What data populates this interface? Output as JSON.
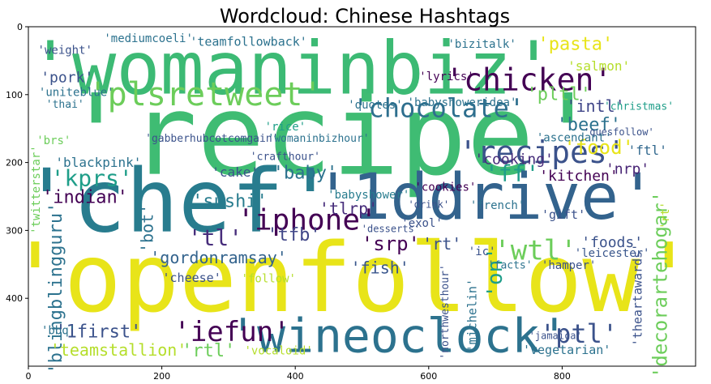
{
  "chart_data": {
    "type": "wordcloud",
    "title": "Wordcloud: Chinese Hashtags",
    "xlim": [
      0,
      1000
    ],
    "ylim": [
      500,
      0
    ],
    "x_ticks": [
      0,
      200,
      400,
      600,
      800
    ],
    "y_ticks": [
      0,
      100,
      200,
      300,
      400
    ],
    "grid": false,
    "words": [
      {
        "text": "'recipe'",
        "x": 455,
        "y": 160,
        "size": 138,
        "color": "#3fbc73",
        "rotate": 0
      },
      {
        "text": "'openfollow'",
        "x": 485,
        "y": 370,
        "size": 118,
        "color": "#e8e419",
        "rotate": 0
      },
      {
        "text": "'womaninbiz'",
        "x": 395,
        "y": 62,
        "size": 90,
        "color": "#3cba74",
        "rotate": 0
      },
      {
        "text": "'chef'",
        "x": 225,
        "y": 258,
        "size": 108,
        "color": "#287c8e",
        "rotate": 0
      },
      {
        "text": "'1ddrive'",
        "x": 685,
        "y": 252,
        "size": 78,
        "color": "#33638d",
        "rotate": 0
      },
      {
        "text": "'wineoclock'",
        "x": 555,
        "y": 455,
        "size": 58,
        "color": "#2c728e",
        "rotate": 0
      },
      {
        "text": "'chicken'",
        "x": 750,
        "y": 78,
        "size": 38,
        "color": "#440154",
        "rotate": 0
      },
      {
        "text": "'plsretweet'",
        "x": 265,
        "y": 100,
        "size": 40,
        "color": "#6ccd5a",
        "rotate": 0
      },
      {
        "text": "'chocolate'",
        "x": 615,
        "y": 120,
        "size": 32,
        "color": "#2e6f8e",
        "rotate": 0
      },
      {
        "text": "'recipes'",
        "x": 770,
        "y": 185,
        "size": 38,
        "color": "#3b528b",
        "rotate": 0
      },
      {
        "text": "'iphone'",
        "x": 418,
        "y": 285,
        "size": 36,
        "color": "#440154",
        "rotate": 0
      },
      {
        "text": "'iefun'",
        "x": 305,
        "y": 450,
        "size": 34,
        "color": "#440154",
        "rotate": 0
      },
      {
        "text": "'wtl'",
        "x": 760,
        "y": 330,
        "size": 34,
        "color": "#6ccd5a",
        "rotate": 0
      },
      {
        "text": "'ptl'",
        "x": 825,
        "y": 452,
        "size": 32,
        "color": "#3b528b",
        "rotate": 0
      },
      {
        "text": "'pltl'",
        "x": 795,
        "y": 100,
        "size": 22,
        "color": "#6ccd5a",
        "rotate": 0
      },
      {
        "text": "'intl'",
        "x": 850,
        "y": 117,
        "size": 20,
        "color": "#404688",
        "rotate": 0
      },
      {
        "text": "'pasta'",
        "x": 820,
        "y": 26,
        "size": 22,
        "color": "#e8e419",
        "rotate": 0
      },
      {
        "text": "'salmon'",
        "x": 855,
        "y": 58,
        "size": 16,
        "color": "#b5de2b",
        "rotate": 0
      },
      {
        "text": "'beef'",
        "x": 840,
        "y": 145,
        "size": 22,
        "color": "#2c728e",
        "rotate": 0
      },
      {
        "text": "'food'",
        "x": 855,
        "y": 178,
        "size": 24,
        "color": "#e8e419",
        "rotate": 0
      },
      {
        "text": "'ftl'",
        "x": 928,
        "y": 182,
        "size": 16,
        "color": "#31688e",
        "rotate": 0
      },
      {
        "text": "'ff'",
        "x": 725,
        "y": 216,
        "size": 28,
        "color": "#1f9e89",
        "rotate": 0
      },
      {
        "text": "'cooking'",
        "x": 728,
        "y": 196,
        "size": 18,
        "color": "#472d7b",
        "rotate": 0
      },
      {
        "text": "'kitchen'",
        "x": 825,
        "y": 220,
        "size": 18,
        "color": "#440154",
        "rotate": 0
      },
      {
        "text": "'nrp'",
        "x": 898,
        "y": 210,
        "size": 18,
        "color": "#482475",
        "rotate": 0
      },
      {
        "text": "'christmas'",
        "x": 915,
        "y": 118,
        "size": 13,
        "color": "#1f9e89",
        "rotate": 0
      },
      {
        "text": "'kprs'",
        "x": 95,
        "y": 223,
        "size": 28,
        "color": "#1f9e89",
        "rotate": 0
      },
      {
        "text": "'indian'",
        "x": 85,
        "y": 252,
        "size": 22,
        "color": "#440154",
        "rotate": 0
      },
      {
        "text": "'blackpink'",
        "x": 105,
        "y": 200,
        "size": 16,
        "color": "#2c728e",
        "rotate": 0
      },
      {
        "text": "'cake'",
        "x": 310,
        "y": 214,
        "size": 16,
        "color": "#3b528b",
        "rotate": 0
      },
      {
        "text": "'baby'",
        "x": 415,
        "y": 216,
        "size": 22,
        "color": "#2c728e",
        "rotate": 0
      },
      {
        "text": "'sushi'",
        "x": 302,
        "y": 258,
        "size": 22,
        "color": "#287c8e",
        "rotate": 0
      },
      {
        "text": "'bot'",
        "x": 178,
        "y": 297,
        "size": 20,
        "color": "#2c728e",
        "rotate": -90
      },
      {
        "text": "'tlrp'",
        "x": 480,
        "y": 268,
        "size": 20,
        "color": "#472d7b",
        "rotate": 0
      },
      {
        "text": "'babyshower'",
        "x": 510,
        "y": 248,
        "size": 14,
        "color": "#287c8e",
        "rotate": 0
      },
      {
        "text": "'gordonramsay'",
        "x": 285,
        "y": 340,
        "size": 20,
        "color": "#33638d",
        "rotate": 0
      },
      {
        "text": "'tl'",
        "x": 280,
        "y": 311,
        "size": 28,
        "color": "#472d7b",
        "rotate": 0
      },
      {
        "text": "'tfb'",
        "x": 398,
        "y": 307,
        "size": 22,
        "color": "#404688",
        "rotate": 0
      },
      {
        "text": "'srp'",
        "x": 543,
        "y": 320,
        "size": 24,
        "color": "#440154",
        "rotate": 0
      },
      {
        "text": "'rt'",
        "x": 620,
        "y": 320,
        "size": 20,
        "color": "#3b528b",
        "rotate": 0
      },
      {
        "text": "'fish'",
        "x": 527,
        "y": 355,
        "size": 20,
        "color": "#39568c",
        "rotate": 0
      },
      {
        "text": "'on'",
        "x": 700,
        "y": 362,
        "size": 26,
        "color": "#1f9e89",
        "rotate": -90
      },
      {
        "text": "'foods'",
        "x": 875,
        "y": 318,
        "size": 18,
        "color": "#3b528b",
        "rotate": 0
      },
      {
        "text": "'leicester'",
        "x": 875,
        "y": 334,
        "size": 14,
        "color": "#39568c",
        "rotate": 0
      },
      {
        "text": "'hamper'",
        "x": 810,
        "y": 352,
        "size": 14,
        "color": "#3b528b",
        "rotate": 0
      },
      {
        "text": "'facts'",
        "x": 722,
        "y": 352,
        "size": 13,
        "color": "#2c728e",
        "rotate": 0
      },
      {
        "text": "'decorartehogar'",
        "x": 947,
        "y": 380,
        "size": 24,
        "color": "#6ccd5a",
        "rotate": -90
      },
      {
        "text": "'theartawards'",
        "x": 913,
        "y": 395,
        "size": 15,
        "color": "#3b528b",
        "rotate": -90
      },
      {
        "text": "'rt'",
        "x": 955,
        "y": 278,
        "size": 14,
        "color": "#b5de2b",
        "rotate": -90
      },
      {
        "text": "'cheese'",
        "x": 245,
        "y": 370,
        "size": 15,
        "color": "#3b528b",
        "rotate": 0
      },
      {
        "text": "'follow'",
        "x": 360,
        "y": 372,
        "size": 14,
        "color": "#b5de2b",
        "rotate": 0
      },
      {
        "text": "'northwesthour'",
        "x": 625,
        "y": 420,
        "size": 13,
        "color": "#3b528b",
        "rotate": -90
      },
      {
        "text": "'michelin'",
        "x": 665,
        "y": 425,
        "size": 15,
        "color": "#2c728e",
        "rotate": -90
      },
      {
        "text": "'blingblingguru'",
        "x": 42,
        "y": 385,
        "size": 22,
        "color": "#2c728e",
        "rotate": -90
      },
      {
        "text": "'1first'",
        "x": 105,
        "y": 450,
        "size": 22,
        "color": "#3b528b",
        "rotate": 0
      },
      {
        "text": "'teamstallion'",
        "x": 135,
        "y": 476,
        "size": 20,
        "color": "#b5de2b",
        "rotate": 0
      },
      {
        "text": "'rtl'",
        "x": 270,
        "y": 478,
        "size": 22,
        "color": "#6ccd5a",
        "rotate": 0
      },
      {
        "text": "'vocaloid'",
        "x": 375,
        "y": 478,
        "size": 14,
        "color": "#b5de2b",
        "rotate": 0
      },
      {
        "text": "'vegetarian'",
        "x": 807,
        "y": 476,
        "size": 15,
        "color": "#2c728e",
        "rotate": 0
      },
      {
        "text": "'bizitalk'",
        "x": 680,
        "y": 26,
        "size": 14,
        "color": "#2c728e",
        "rotate": 0
      },
      {
        "text": "'teamfollowback'",
        "x": 330,
        "y": 22,
        "size": 15,
        "color": "#2c728e",
        "rotate": 0
      },
      {
        "text": "'mediumcoeli'",
        "x": 180,
        "y": 18,
        "size": 14,
        "color": "#2c728e",
        "rotate": 0
      },
      {
        "text": "'weight'",
        "x": 55,
        "y": 35,
        "size": 14,
        "color": "#3b528b",
        "rotate": 0
      },
      {
        "text": "'pork'",
        "x": 58,
        "y": 75,
        "size": 18,
        "color": "#3b528b",
        "rotate": 0
      },
      {
        "text": "'uniteblue'",
        "x": 72,
        "y": 97,
        "size": 14,
        "color": "#2c728e",
        "rotate": 0
      },
      {
        "text": "'thai'",
        "x": 55,
        "y": 115,
        "size": 13,
        "color": "#2c728e",
        "rotate": 0
      },
      {
        "text": "'brs'",
        "x": 38,
        "y": 168,
        "size": 14,
        "color": "#6ccd5a",
        "rotate": 0
      },
      {
        "text": "'quotes'",
        "x": 520,
        "y": 116,
        "size": 14,
        "color": "#2c728e",
        "rotate": 0
      },
      {
        "text": "'babyshoweridea'",
        "x": 650,
        "y": 112,
        "size": 14,
        "color": "#2c728e",
        "rotate": 0
      },
      {
        "text": "'lyrics'",
        "x": 627,
        "y": 74,
        "size": 14,
        "color": "#440154",
        "rotate": 0
      },
      {
        "text": "'ascendant'",
        "x": 818,
        "y": 164,
        "size": 14,
        "color": "#2c728e",
        "rotate": 0
      },
      {
        "text": "'gabberhubcotcomgain'",
        "x": 275,
        "y": 165,
        "size": 13,
        "color": "#3b528b",
        "rotate": 0
      },
      {
        "text": "'womaninbizhour'",
        "x": 435,
        "y": 165,
        "size": 13,
        "color": "#2c728e",
        "rotate": 0
      },
      {
        "text": "'rice'",
        "x": 385,
        "y": 148,
        "size": 14,
        "color": "#1f9e89",
        "rotate": 0
      },
      {
        "text": "'crafthour'",
        "x": 385,
        "y": 192,
        "size": 13,
        "color": "#3b528b",
        "rotate": 0
      },
      {
        "text": "'cookies'",
        "x": 625,
        "y": 237,
        "size": 14,
        "color": "#440154",
        "rotate": 0
      },
      {
        "text": "'french'",
        "x": 703,
        "y": 264,
        "size": 14,
        "color": "#2c728e",
        "rotate": 0
      },
      {
        "text": "'drink'",
        "x": 600,
        "y": 262,
        "size": 12,
        "color": "#3b528b",
        "rotate": 0
      },
      {
        "text": "'gift'",
        "x": 802,
        "y": 277,
        "size": 15,
        "color": "#3b528b",
        "rotate": 0
      },
      {
        "text": "'exol'",
        "x": 590,
        "y": 290,
        "size": 14,
        "color": "#3b528b",
        "rotate": 0
      },
      {
        "text": "'desserts'",
        "x": 543,
        "y": 298,
        "size": 12,
        "color": "#3b528b",
        "rotate": 0
      },
      {
        "text": "'ic'",
        "x": 680,
        "y": 332,
        "size": 14,
        "color": "#3b528b",
        "rotate": 0
      },
      {
        "text": "'quesfollow'",
        "x": 885,
        "y": 155,
        "size": 12,
        "color": "#3b528b",
        "rotate": 0
      },
      {
        "text": "'bbq'",
        "x": 45,
        "y": 448,
        "size": 14,
        "color": "#2c728e",
        "rotate": 0
      },
      {
        "text": "'jamaica'",
        "x": 790,
        "y": 455,
        "size": 12,
        "color": "#3b528b",
        "rotate": 0
      },
      {
        "text": "'twitterstar'",
        "x": 12,
        "y": 240,
        "size": 14,
        "color": "#6ccd5a",
        "rotate": -90
      }
    ]
  }
}
